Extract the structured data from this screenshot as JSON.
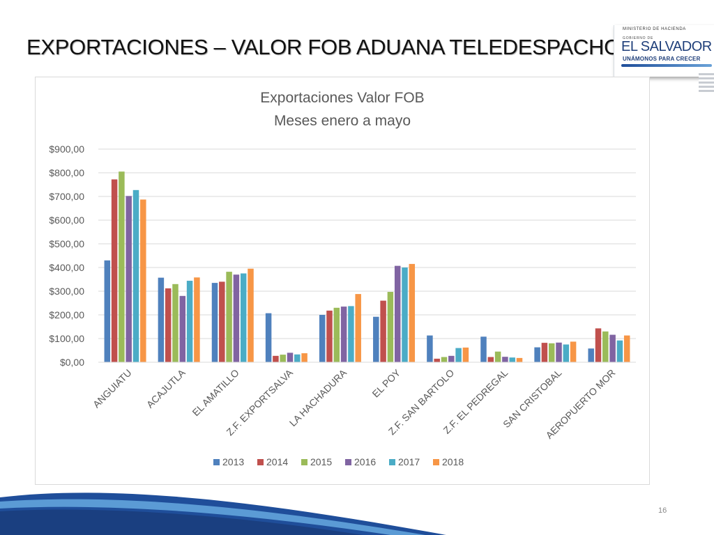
{
  "slide": {
    "title": "EXPORTACIONES –  VALOR FOB ADUANA TELEDESPACHO",
    "page_number": "16"
  },
  "logo": {
    "ministry": "MINISTERIO DE HACIENDA",
    "gobierno_de": "GOBIERNO DE",
    "country": "EL SALVADOR",
    "tagline": "UNÁMONOS PARA CRECER"
  },
  "colors": {
    "series": [
      "#4f81bd",
      "#c0504d",
      "#9bbb59",
      "#8064a2",
      "#4bacc6",
      "#f79646"
    ],
    "grid": "#d9d9d9",
    "text": "#595959",
    "brand_blue": "#1f4e9a"
  },
  "chart_data": {
    "type": "bar",
    "title": "Exportaciones Valor FOB",
    "subtitle": "Meses enero a mayo",
    "xlabel": "",
    "ylabel": "",
    "ylim": [
      0,
      900
    ],
    "y_ticks": [
      "$0,00",
      "$100,00",
      "$200,00",
      "$300,00",
      "$400,00",
      "$500,00",
      "$600,00",
      "$700,00",
      "$800,00",
      "$900,00"
    ],
    "grid": true,
    "legend_position": "bottom",
    "categories": [
      "ANGUIATU",
      "ACAJUTLA",
      "EL AMATILLO",
      "Z.F. EXPORTSALVA",
      "LA HACHADURA",
      "EL POY",
      "Z.F. SAN BARTOLO",
      "Z.F. EL PEDREGAL",
      "SAN CRISTOBAL",
      "AEROPUERTO MOR"
    ],
    "series": [
      {
        "name": "2013",
        "values": [
          430,
          357,
          335,
          207,
          200,
          192,
          113,
          108,
          63,
          58
        ]
      },
      {
        "name": "2014",
        "values": [
          772,
          312,
          340,
          27,
          218,
          260,
          15,
          22,
          82,
          143
        ]
      },
      {
        "name": "2015",
        "values": [
          805,
          330,
          382,
          32,
          230,
          297,
          22,
          45,
          80,
          130
        ]
      },
      {
        "name": "2016",
        "values": [
          702,
          280,
          370,
          40,
          235,
          407,
          27,
          23,
          83,
          116
        ]
      },
      {
        "name": "2017",
        "values": [
          727,
          344,
          375,
          33,
          237,
          400,
          60,
          20,
          75,
          92
        ]
      },
      {
        "name": "2018",
        "values": [
          687,
          358,
          395,
          38,
          288,
          415,
          62,
          18,
          87,
          113
        ]
      }
    ]
  }
}
